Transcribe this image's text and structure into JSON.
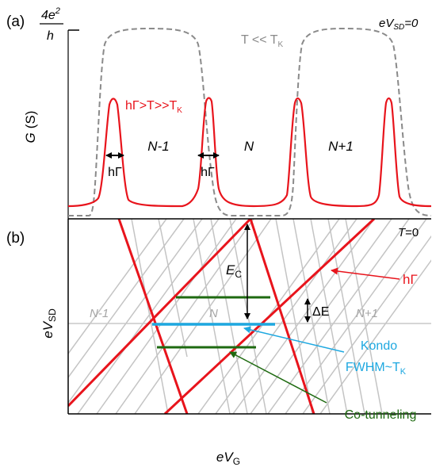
{
  "panel_a": {
    "label": "(a)",
    "y_tick": {
      "num": "4e",
      "sup": "2",
      "den": "h"
    },
    "y_axis": {
      "main": "G",
      "unit": "(S)"
    },
    "bias": {
      "main": "eV",
      "sub": "SD",
      "rest": "=0"
    },
    "kondo_curve_label": {
      "main": "T << T",
      "sub": "K"
    },
    "red_curve_label": {
      "main": "hΓ>T>>T",
      "sub": "K"
    },
    "valley_labels": [
      "N-1",
      "N",
      "N+1"
    ],
    "width_labels": [
      "hΓ",
      "hΓ"
    ]
  },
  "panel_b": {
    "label": "(b)",
    "temperature": {
      "main": "T",
      "rest": "=0"
    },
    "y_axis": {
      "main": "eV",
      "sub": "SD"
    },
    "x_axis": {
      "main": "eV",
      "sub": "G"
    },
    "charging": {
      "main": "E",
      "sub": "C"
    },
    "delta_e": "ΔE",
    "region_labels": [
      "N-1",
      "N",
      "N+1"
    ],
    "annotations": {
      "broadening": "hΓ",
      "kondo_line1": "Kondo",
      "kondo_line2_main": "FWHM~T",
      "kondo_line2_sub": "K",
      "cotunneling": "Co-tunneling"
    }
  },
  "colors": {
    "red": "#e8141c",
    "gray_dashed": "#8a8a8a",
    "hatch": "#c4c4c4",
    "kondo": "#1ea8e0",
    "cotunnel": "#1e6a10",
    "axis": "#000000"
  }
}
